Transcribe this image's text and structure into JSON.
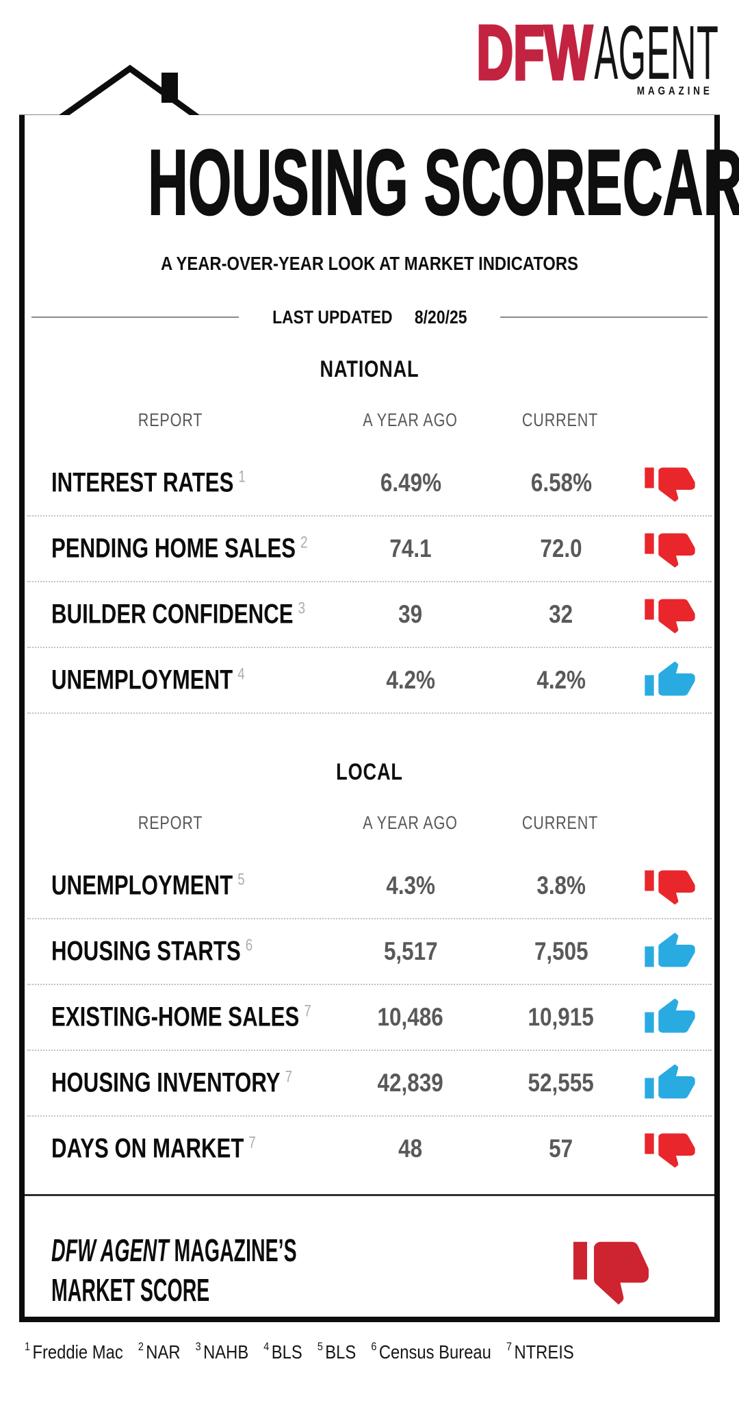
{
  "logo": {
    "dfw": "DFW",
    "agent": "AGENT",
    "magazine": "MAGAZINE",
    "dfw_color": "#c22340"
  },
  "header": {
    "title": "HOUSING SCORECARD",
    "subtitle": "A YEAR-OVER-YEAR LOOK AT MARKET INDICATORS",
    "last_updated_label": "LAST UPDATED",
    "last_updated_date": "8/20/25"
  },
  "columns": {
    "report": "REPORT",
    "year_ago": "A YEAR AGO",
    "current": "CURRENT"
  },
  "sections": [
    {
      "name": "NATIONAL",
      "last_row_separator": true,
      "rows": [
        {
          "label": "INTEREST RATES",
          "ref": "1",
          "year_ago": "6.49%",
          "current": "6.58%",
          "verdict": "down"
        },
        {
          "label": "PENDING HOME SALES",
          "ref": "2",
          "year_ago": "74.1",
          "current": "72.0",
          "verdict": "down"
        },
        {
          "label": "BUILDER CONFIDENCE",
          "ref": "3",
          "year_ago": "39",
          "current": "32",
          "verdict": "down"
        },
        {
          "label": "UNEMPLOYMENT",
          "ref": "4",
          "year_ago": "4.2%",
          "current": "4.2%",
          "verdict": "up"
        }
      ]
    },
    {
      "name": "LOCAL",
      "last_row_separator": false,
      "rows": [
        {
          "label": "UNEMPLOYMENT",
          "ref": "5",
          "year_ago": "4.3%",
          "current": "3.8%",
          "verdict": "down"
        },
        {
          "label": "HOUSING STARTS",
          "ref": "6",
          "year_ago": "5,517",
          "current": "7,505",
          "verdict": "up"
        },
        {
          "label": "EXISTING-HOME SALES",
          "ref": "7",
          "year_ago": "10,486",
          "current": "10,915",
          "verdict": "up"
        },
        {
          "label": "HOUSING INVENTORY",
          "ref": "7",
          "year_ago": "42,839",
          "current": "52,555",
          "verdict": "up"
        },
        {
          "label": "DAYS ON MARKET",
          "ref": "7",
          "year_ago": "48",
          "current": "57",
          "verdict": "down"
        }
      ]
    }
  ],
  "market_score": {
    "brand": "DFW AGENT",
    "line1_rest": " MAGAZINE’S",
    "line2": "MARKET SCORE",
    "verdict": "down"
  },
  "footnotes": [
    {
      "ref": "1",
      "source": "Freddie Mac"
    },
    {
      "ref": "2",
      "source": "NAR"
    },
    {
      "ref": "3",
      "source": "NAHB"
    },
    {
      "ref": "4",
      "source": "BLS"
    },
    {
      "ref": "5",
      "source": "BLS"
    },
    {
      "ref": "6",
      "source": "Census Bureau"
    },
    {
      "ref": "7",
      "source": "NTREIS"
    }
  ],
  "colors": {
    "thumb_up": "#29abe2",
    "thumb_down": "#e8262b",
    "market_thumb": "#cd2430",
    "border_black": "#0d0d0d",
    "value_gray": "#58595b"
  }
}
